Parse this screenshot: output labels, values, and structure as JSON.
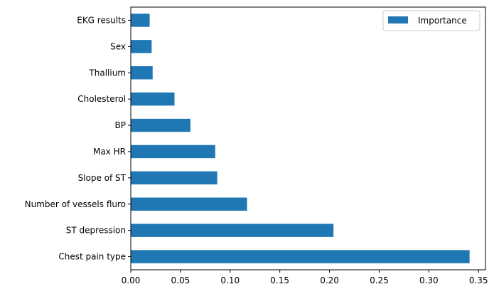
{
  "chart_data": {
    "type": "bar",
    "orientation": "horizontal",
    "categories": [
      "Chest pain type",
      "ST depression",
      "Number of vessels fluro",
      "Slope of ST",
      "Max HR",
      "BP",
      "Cholesterol",
      "Thallium",
      "Sex",
      "EKG results"
    ],
    "series": [
      {
        "name": "Importance",
        "values": [
          0.341,
          0.204,
          0.117,
          0.087,
          0.085,
          0.06,
          0.044,
          0.022,
          0.021,
          0.019
        ]
      }
    ],
    "xlim": [
      0,
      0.357
    ],
    "xticks": [
      0.0,
      0.05,
      0.1,
      0.15,
      0.2,
      0.25,
      0.3,
      0.35
    ],
    "xtick_labels": [
      "0.00",
      "0.05",
      "0.10",
      "0.15",
      "0.20",
      "0.25",
      "0.30",
      "0.35"
    ],
    "xlabel": "",
    "ylabel": "",
    "title": "",
    "grid": false,
    "legend_position": "top-right",
    "bar_color": "#1f77b4"
  }
}
